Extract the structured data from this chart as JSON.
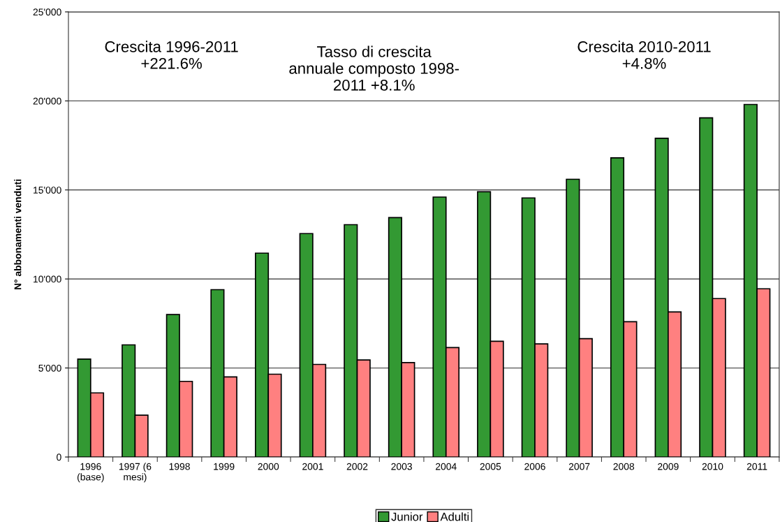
{
  "chart_data": {
    "type": "bar",
    "ylabel": "N° abbonamenti venduti",
    "categories": [
      "1996\n(base)",
      "1997 (6\nmesi)",
      "1998",
      "1999",
      "2000",
      "2001",
      "2002",
      "2003",
      "2004",
      "2005",
      "2006",
      "2007",
      "2008",
      "2009",
      "2010",
      "2011"
    ],
    "series": [
      {
        "name": "Junior",
        "color": "#339933",
        "values": [
          5500,
          6300,
          8000,
          9400,
          11450,
          12550,
          13050,
          13450,
          14600,
          14900,
          14550,
          15600,
          16800,
          17900,
          19050,
          19800
        ]
      },
      {
        "name": "Adulti",
        "color": "#ff8080",
        "values": [
          3600,
          2350,
          4250,
          4500,
          4650,
          5200,
          5450,
          5300,
          6150,
          6500,
          6350,
          6650,
          7600,
          8150,
          8900,
          9450
        ]
      }
    ],
    "ylim": [
      0,
      25000
    ],
    "yticks": [
      {
        "value": 0,
        "label": "0"
      },
      {
        "value": 5000,
        "label": "5'000"
      },
      {
        "value": 10000,
        "label": "10'000"
      },
      {
        "value": 15000,
        "label": "15'000"
      },
      {
        "value": 20000,
        "label": "20'000"
      },
      {
        "value": 25000,
        "label": "25'000"
      }
    ],
    "grid": "y",
    "legend": "bottom",
    "annotations": [
      "Crescita 1996-2011\n+221.6%",
      "Tasso di crescita\nannuale composto 1998-\n2011 +8.1%",
      "Crescita 2010-2011\n+4.8%"
    ]
  }
}
